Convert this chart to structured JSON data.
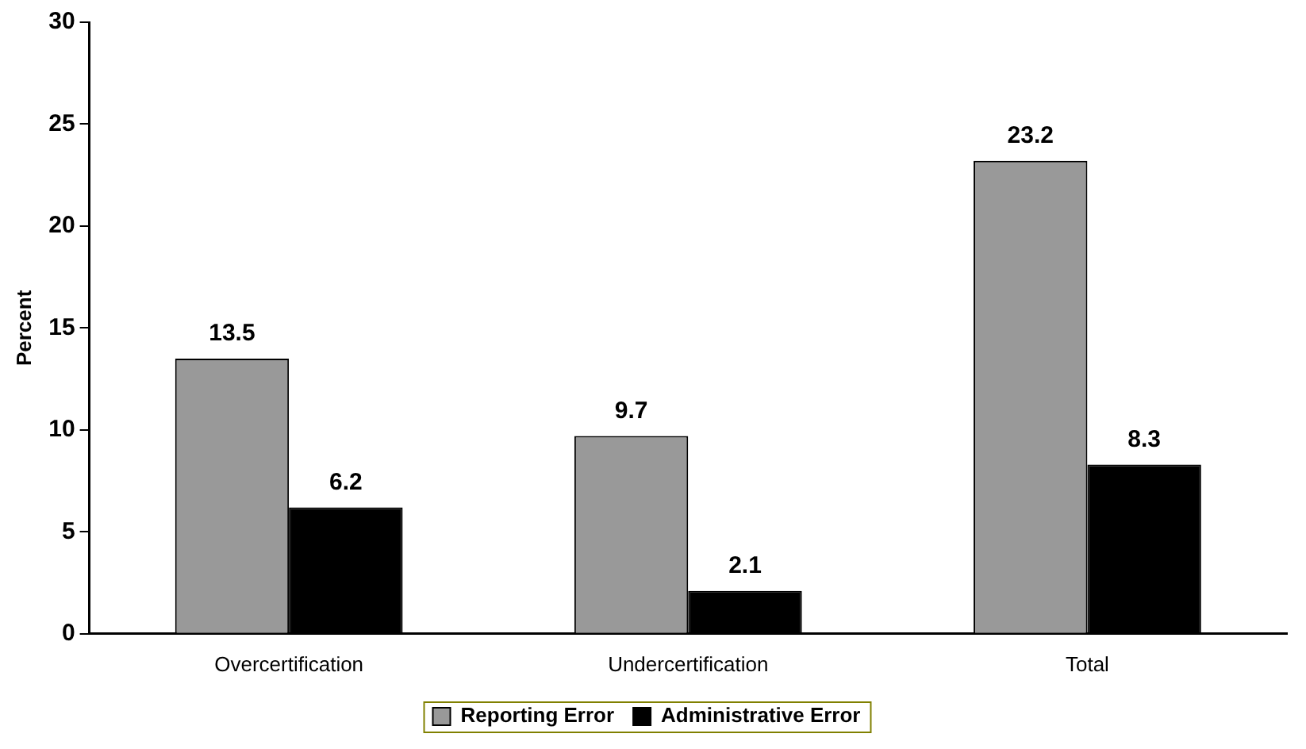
{
  "chart_data": {
    "type": "bar",
    "ylabel": "Percent",
    "categories": [
      "Overcertification",
      "Undercertification",
      "Total"
    ],
    "series": [
      {
        "name": "Reporting Error",
        "color": "#999999",
        "values": [
          13.5,
          9.7,
          23.2
        ]
      },
      {
        "name": "Administrative Error",
        "color": "#000000",
        "values": [
          6.2,
          2.1,
          8.3
        ]
      }
    ],
    "ylim": [
      0,
      30
    ],
    "yticks": [
      0,
      5,
      10,
      15,
      20,
      25,
      30
    ],
    "grid": false,
    "legend": "bottom",
    "data_labels": true
  }
}
